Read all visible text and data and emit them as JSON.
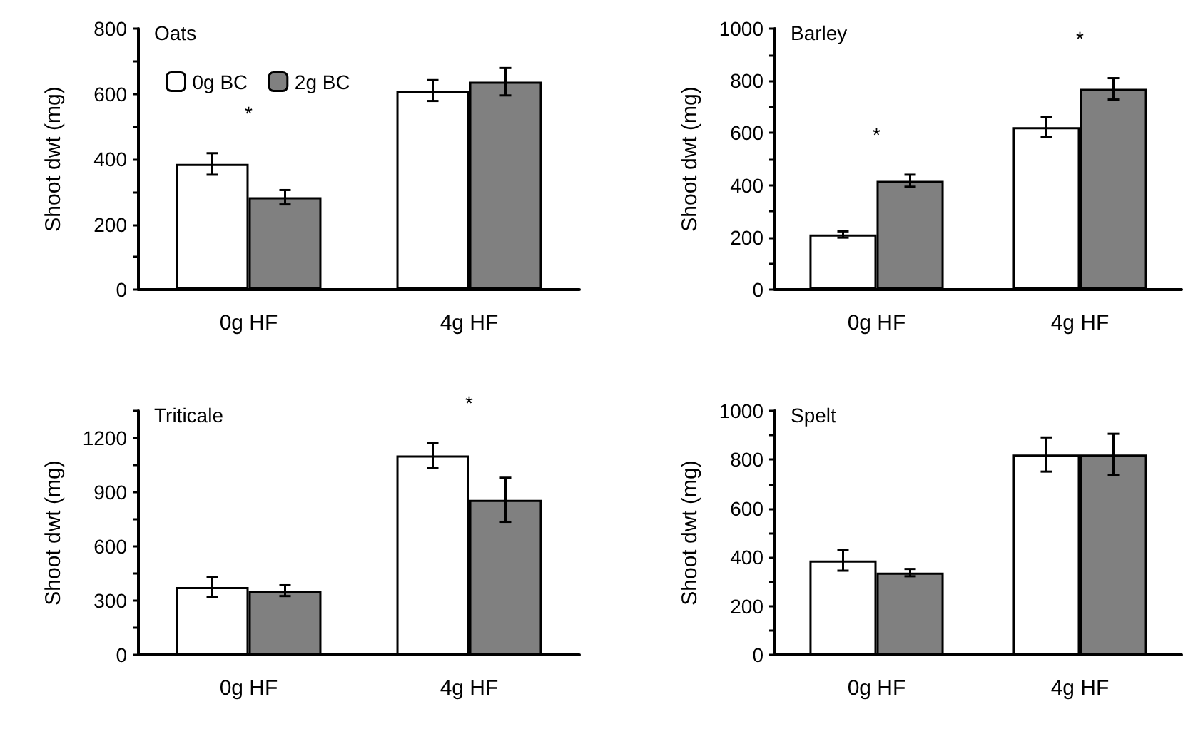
{
  "chart_data": [
    {
      "type": "bar",
      "title": "Oats",
      "ylabel": "Shoot dwt (mg)",
      "categories": [
        "0g HF",
        "4g HF"
      ],
      "legend": "top left",
      "grid": false,
      "ylim": [
        0,
        800
      ],
      "yticks": [
        0,
        {
          "value": 100,
          "label": null
        },
        200,
        {
          "value": 300,
          "label": null
        },
        400,
        {
          "value": 500,
          "label": null
        },
        600,
        {
          "value": 700,
          "label": null
        },
        800
      ],
      "series": [
        {
          "name": "0g BC",
          "color": "#ffffff",
          "values": [
            385,
            610
          ],
          "errors": [
            33,
            32
          ]
        },
        {
          "name": "2g BC",
          "color": "#808080",
          "values": [
            283,
            637
          ],
          "errors": [
            22,
            42
          ]
        }
      ],
      "annotations": [
        "*"
      ]
    },
    {
      "type": "bar",
      "title": "Barley",
      "ylabel": "Shoot dwt (mg)",
      "categories": [
        "0g HF",
        "4g HF"
      ],
      "grid": false,
      "ylim": [
        0,
        1000
      ],
      "yticks": [
        0,
        {
          "value": 100,
          "label": null
        },
        200,
        {
          "value": 300,
          "label": null
        },
        400,
        {
          "value": 500,
          "label": null
        },
        600,
        {
          "value": 700,
          "label": null
        },
        800,
        {
          "value": 900,
          "label": null
        },
        1000
      ],
      "series": [
        {
          "color": "#ffffff",
          "values": [
            211,
            622
          ],
          "errors": [
            12,
            38
          ]
        },
        {
          "color": "#808080",
          "values": [
            417,
            769
          ],
          "errors": [
            23,
            41
          ]
        }
      ],
      "annotations": [
        "*",
        "*"
      ]
    },
    {
      "type": "bar",
      "title": "Triticale",
      "ylabel": "Shoot dwt (mg)",
      "categories": [
        "0g HF",
        "4g HF"
      ],
      "grid": false,
      "ylim": [
        0,
        1350
      ],
      "yticks": [
        0,
        {
          "value": 150,
          "label": null
        },
        300,
        {
          "value": 450,
          "label": null
        },
        600,
        {
          "value": 750,
          "label": null
        },
        900,
        {
          "value": 1050,
          "label": null
        },
        1200,
        {
          "value": 1350,
          "label": null
        }
      ],
      "series": [
        {
          "color": "#ffffff",
          "values": [
            375,
            1103
          ],
          "errors": [
            55,
            68
          ]
        },
        {
          "color": "#808080",
          "values": [
            355,
            858
          ],
          "errors": [
            30,
            122
          ]
        }
      ],
      "annotations": [
        "*"
      ]
    },
    {
      "type": "bar",
      "title": "Spelt",
      "ylabel": "Shoot dwt (mg)",
      "categories": [
        "0g HF",
        "4g HF"
      ],
      "grid": false,
      "ylim": [
        0,
        1000
      ],
      "yticks": [
        0,
        {
          "value": 100,
          "label": null
        },
        200,
        {
          "value": 300,
          "label": null
        },
        400,
        {
          "value": 500,
          "label": null
        },
        600,
        {
          "value": 700,
          "label": null
        },
        800,
        {
          "value": 900,
          "label": null
        },
        1000
      ],
      "series": [
        {
          "color": "#ffffff",
          "values": [
            387,
            821
          ],
          "errors": [
            42,
            70
          ]
        },
        {
          "color": "#808080",
          "values": [
            337,
            821
          ],
          "errors": [
            15,
            85
          ]
        }
      ]
    }
  ]
}
